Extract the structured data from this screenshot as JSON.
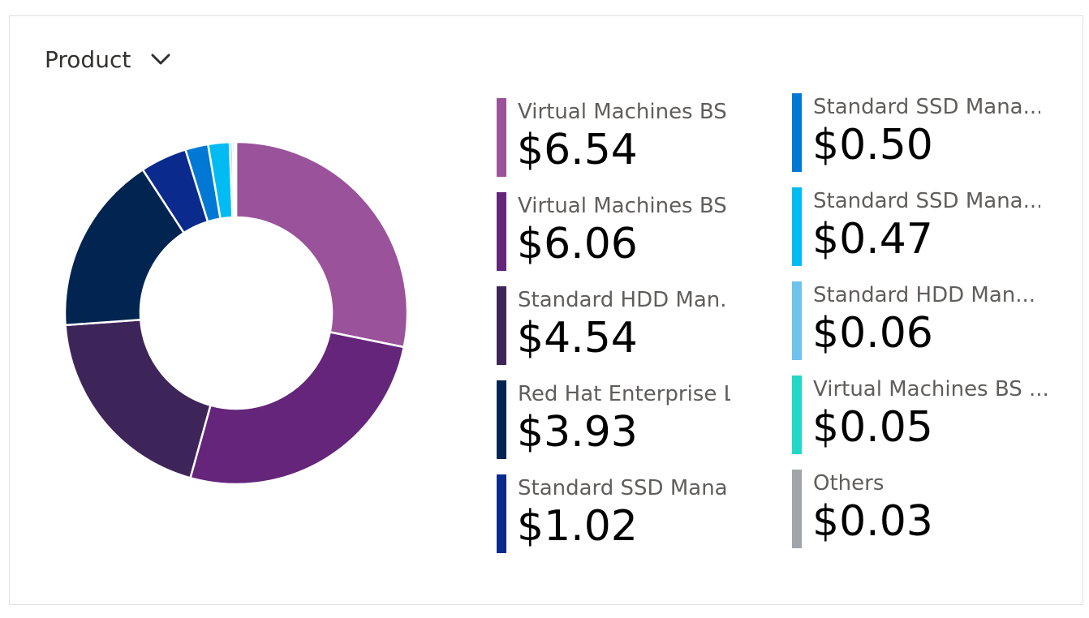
{
  "picker": {
    "label": "Product",
    "icon": "chevron-down-icon"
  },
  "chart_data": {
    "type": "pie",
    "hole": true,
    "categories": [
      "Virtual Machines BS",
      "Virtual Machines BS",
      "Standard HDD Man.",
      "Red Hat Enterprise L",
      "Standard SSD Mana",
      "Standard SSD Mana...",
      "Standard SSD Mana...",
      "Standard HDD Man...",
      "Virtual Machines BS ...",
      "Others"
    ],
    "values": [
      6.54,
      6.06,
      4.54,
      3.93,
      1.02,
      0.5,
      0.47,
      0.06,
      0.05,
      0.03
    ],
    "value_labels": [
      "$6.54",
      "$6.06",
      "$4.54",
      "$3.93",
      "$1.02",
      "$0.50",
      "$0.47",
      "$0.06",
      "$0.05",
      "$0.03"
    ],
    "colors": [
      "#9a539b",
      "#64257a",
      "#3e2559",
      "#012450",
      "#0b2a8e",
      "#0078d4",
      "#00bcf2",
      "#6ec3eb",
      "#23d7c7",
      "#a0a5a8"
    ],
    "legend_position": "right"
  }
}
